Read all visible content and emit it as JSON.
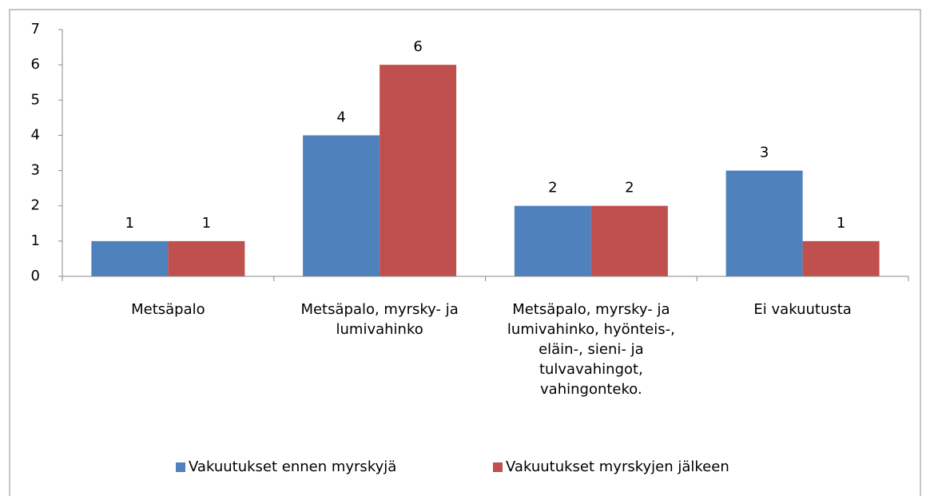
{
  "chart_data": {
    "type": "bar",
    "categories": [
      "Metsäpalo",
      "Metsäpalo, myrsky- ja lumivahinko",
      "Metsäpalo, myrsky- ja lumivahinko, hyönteis-, eläin-, sieni- ja tulvavahingot, vahingonteko.",
      "Ei vakuutusta"
    ],
    "series": [
      {
        "name": "Vakuutukset ennen myrskyjä",
        "color": "#4f81bd",
        "values": [
          1,
          4,
          2,
          3
        ]
      },
      {
        "name": "Vakuutukset myrskyjen jälkeen",
        "color": "#c0504d",
        "values": [
          1,
          6,
          2,
          1
        ]
      }
    ],
    "ylim": [
      0,
      7
    ],
    "yticks": [
      0,
      1,
      2,
      3,
      4,
      5,
      6,
      7
    ],
    "grid": false,
    "legend": "bottom"
  }
}
